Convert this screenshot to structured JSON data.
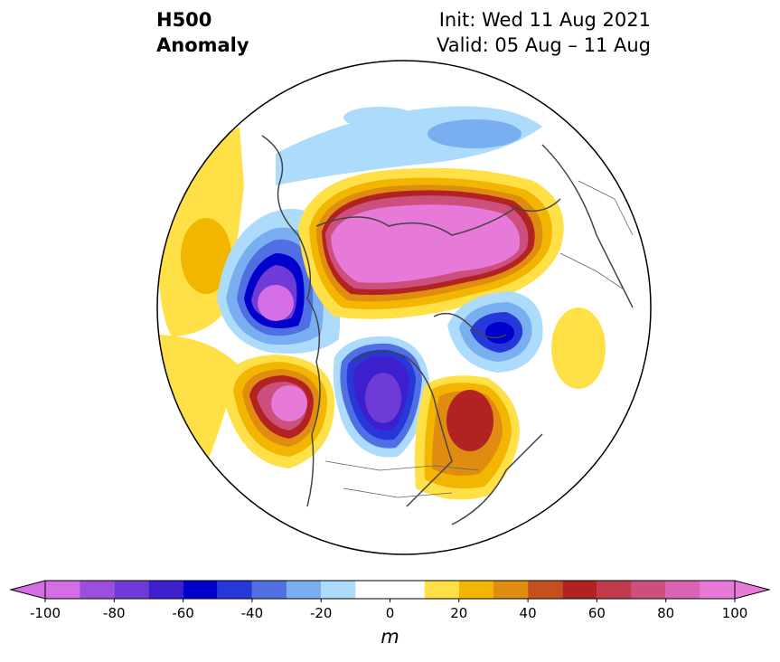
{
  "title": {
    "line1": "H500",
    "line2": "Anomaly"
  },
  "subtitle": {
    "init": "Init: Wed 11 Aug 2021",
    "valid": "Valid: 05 Aug – 11 Aug"
  },
  "colorbar": {
    "unit": "m",
    "ticks": [
      "-100",
      "-80",
      "-60",
      "-40",
      "-20",
      "0",
      "20",
      "40",
      "60",
      "80",
      "100"
    ],
    "levels": [
      -100,
      -90,
      -80,
      -70,
      -60,
      -50,
      -40,
      -30,
      -20,
      -10,
      10,
      20,
      30,
      40,
      50,
      60,
      70,
      80,
      90,
      100
    ],
    "colors": [
      "#d56de6",
      "#9c4fdc",
      "#6f3bd6",
      "#3d1fce",
      "#0000cc",
      "#2638d8",
      "#4f6fe3",
      "#79aef1",
      "#acdbfc",
      "#ffffff",
      "#ffffff",
      "#ffe046",
      "#f2b600",
      "#df8c10",
      "#c5501b",
      "#b22222",
      "#c03a4a",
      "#cc4f7e",
      "#db63b6",
      "#e77ad8",
      "#e578d6"
    ],
    "extend_low_color": "#d56de6",
    "extend_high_color": "#e779d8"
  },
  "map": {
    "projection": "north-polar-stereographic",
    "anomalies": [
      {
        "name": "Arctic ridge",
        "peak_m": 100
      },
      {
        "name": "NE Pacific ridge",
        "peak_m": 100
      },
      {
        "name": "Western Europe ridge",
        "peak_m": 20
      },
      {
        "name": "Eastern Canada ridge",
        "peak_m": 70
      },
      {
        "name": "Hudson Bay trough",
        "peak_m": -80
      },
      {
        "name": "Bering trough",
        "peak_m": -100
      },
      {
        "name": "Kara Sea trough",
        "peak_m": -60
      }
    ]
  }
}
